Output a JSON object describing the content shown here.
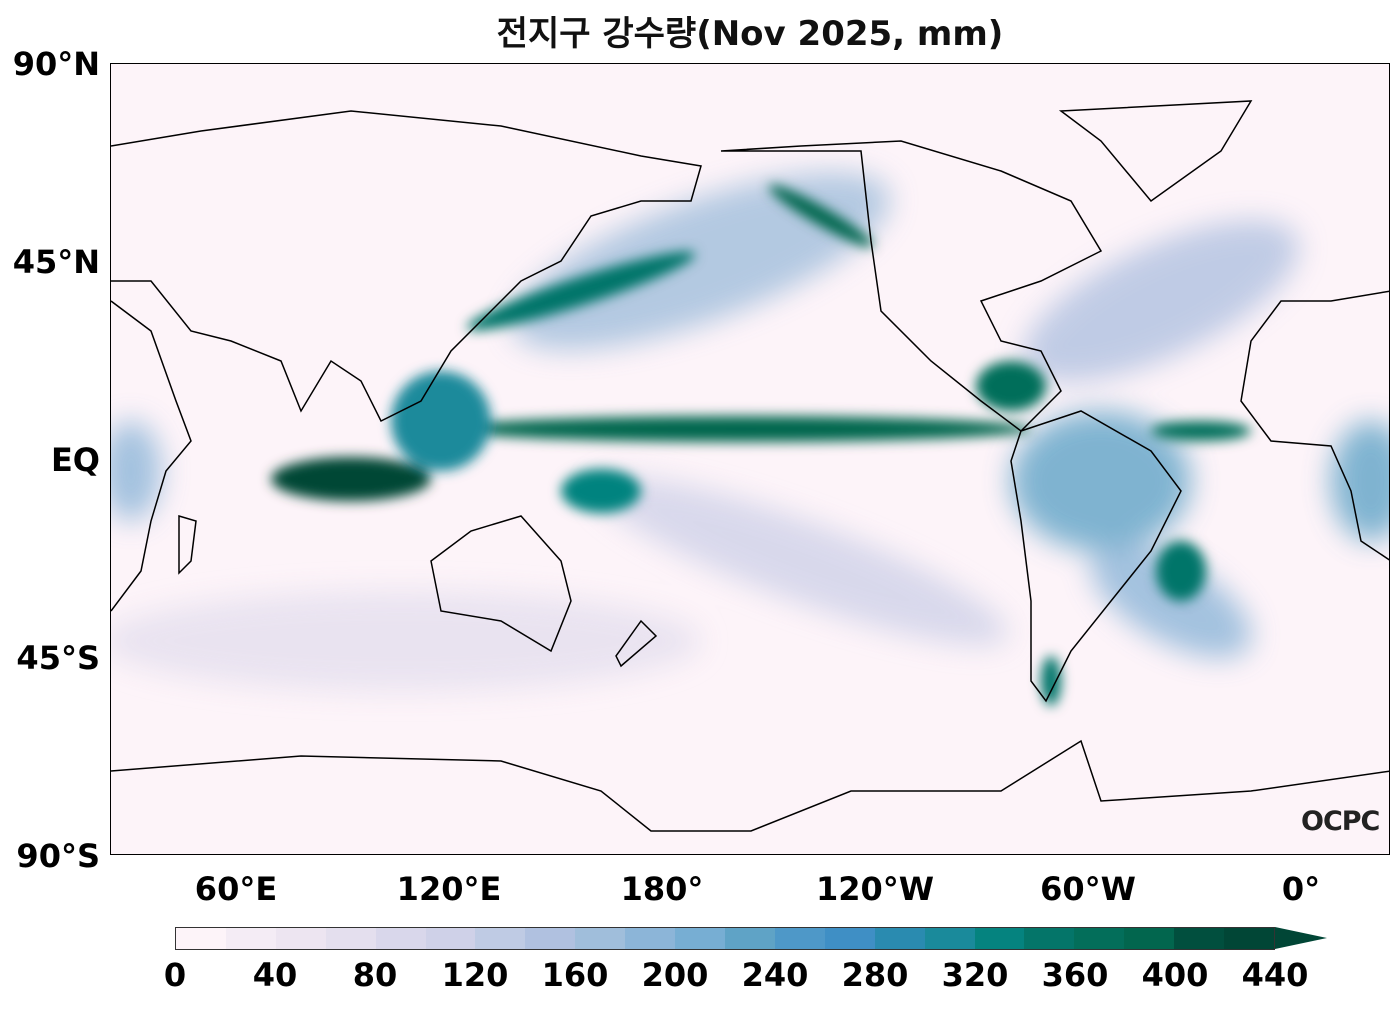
{
  "title": "전지구 강수량(Nov 2025, mm)",
  "logo": "OCPC",
  "y_axis": [
    "90°N",
    "45°N",
    "EQ",
    "45°S",
    "90°S"
  ],
  "x_axis": [
    "60°E",
    "120°E",
    "180°",
    "120°W",
    "60°W",
    "0°"
  ],
  "colorbar": {
    "ticks": [
      "0",
      "40",
      "80",
      "120",
      "160",
      "200",
      "240",
      "280",
      "320",
      "360",
      "400",
      "440"
    ],
    "step": 20,
    "extend": "max",
    "colors": [
      "#fdf4f9",
      "#f4ecf5",
      "#ede5f1",
      "#e4dfee",
      "#d9d7eb",
      "#cfd1e8",
      "#bfcbe4",
      "#b0c1e0",
      "#a0bedb",
      "#8cb5d8",
      "#77aed3",
      "#5fa3c6",
      "#4e98c8",
      "#3f8fc5",
      "#2a8bb0",
      "#1a8a9b",
      "#05837f",
      "#047569",
      "#036e5a",
      "#02664e",
      "#014f3e",
      "#014636"
    ]
  }
}
